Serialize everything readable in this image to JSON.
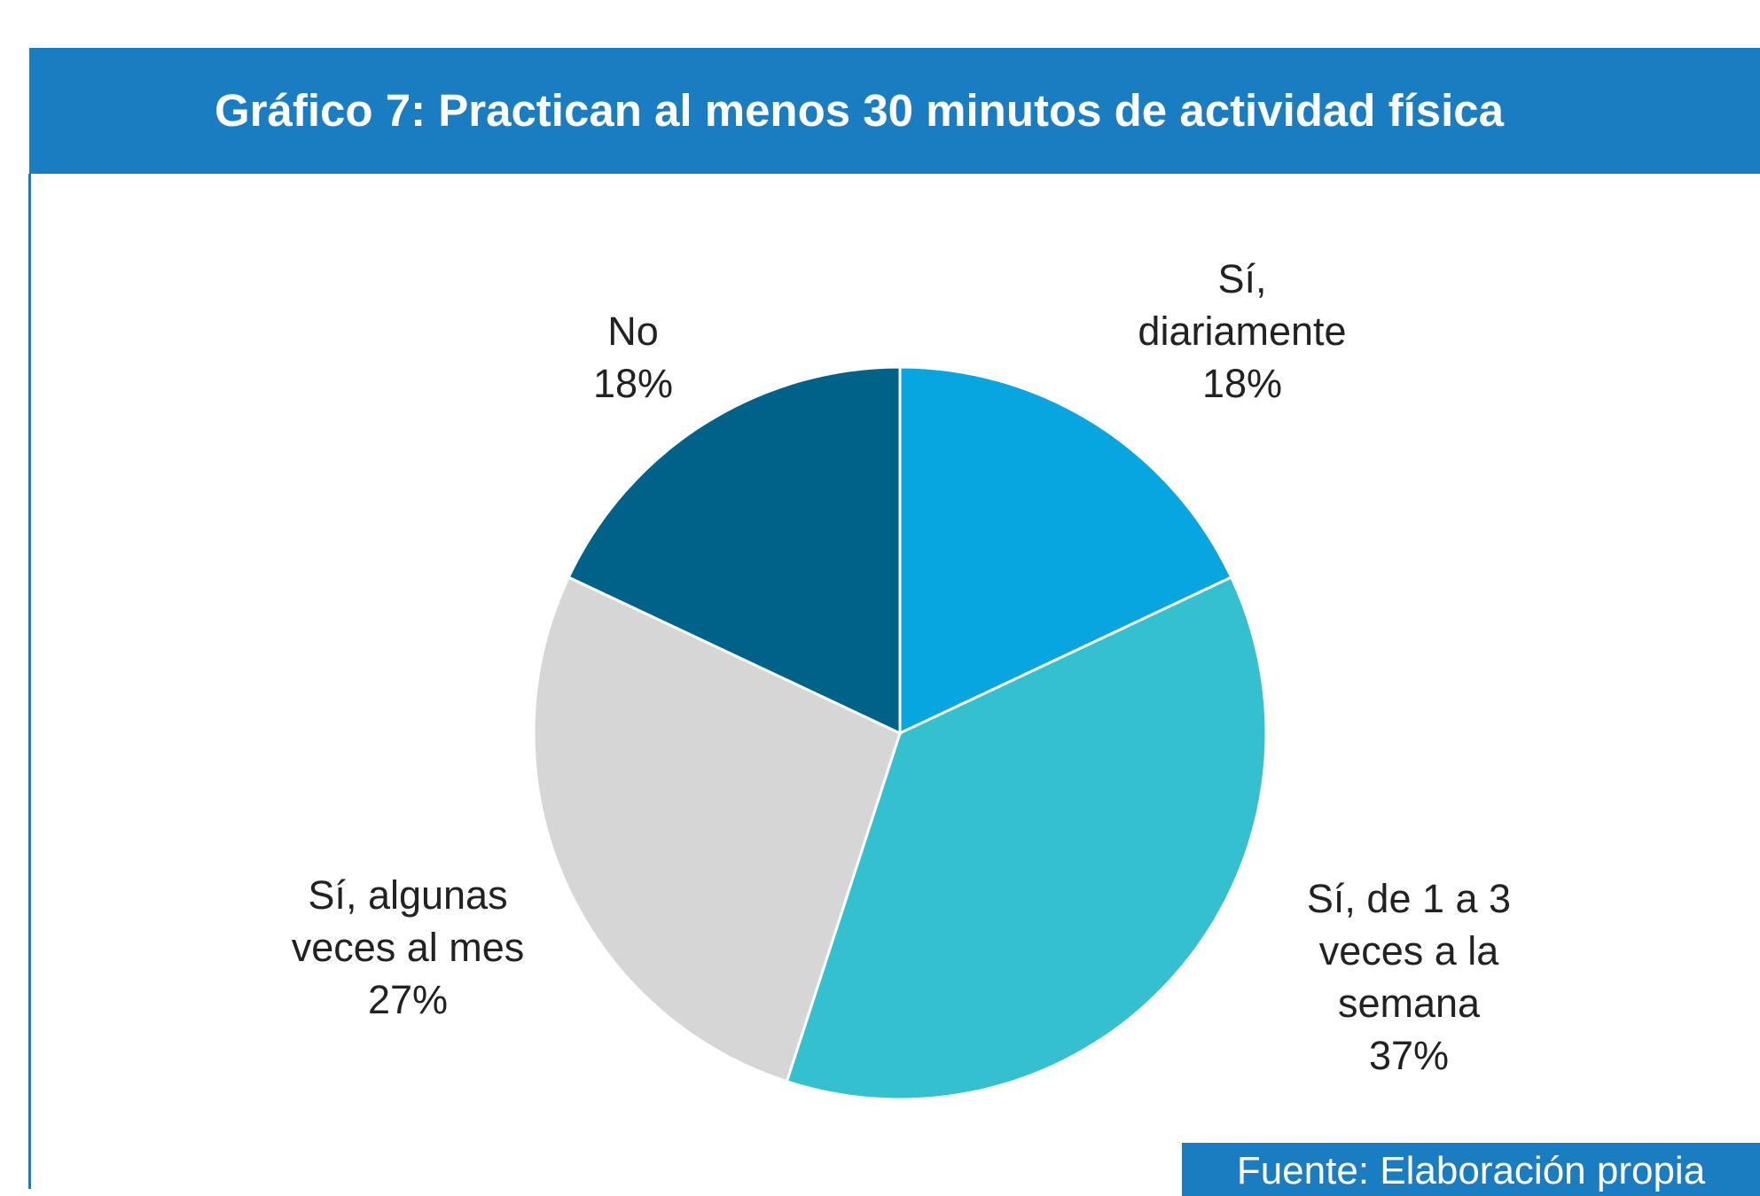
{
  "chart_data": {
    "type": "pie",
    "title": "Gráfico 7: Practican al menos 30 minutos de actividad física",
    "categories": [
      "Sí,\ndiariamente",
      "Sí, de 1 a 3\nveces a la\nsemana",
      "Sí, algunas\nveces al mes",
      "No"
    ],
    "values": [
      18,
      37,
      27,
      18
    ],
    "value_labels": [
      "18%",
      "37%",
      "27%",
      "18%"
    ],
    "colors": [
      "#07a6e0",
      "#35c0d0",
      "#d6d6d6",
      "#006189"
    ],
    "source": "Fuente: Elaboración propia"
  }
}
